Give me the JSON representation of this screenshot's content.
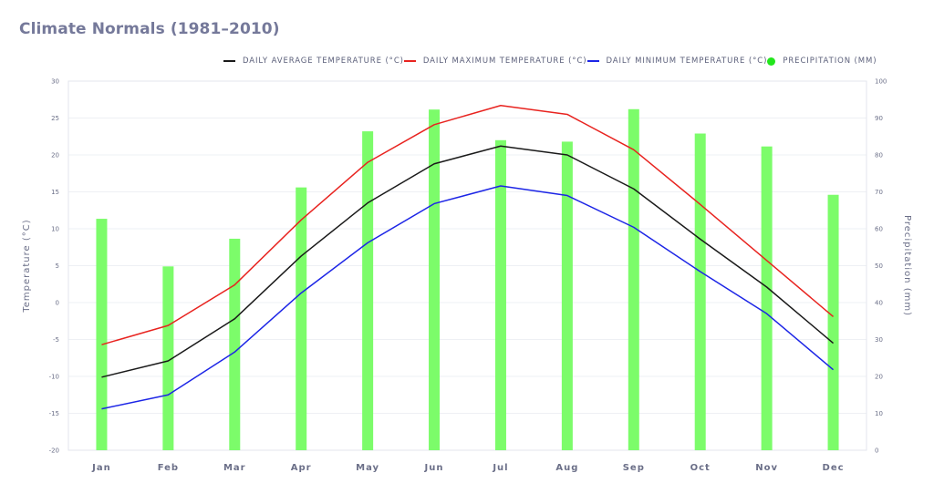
{
  "title": "Climate Normals (1981–2010)",
  "legend": [
    {
      "label": "DAILY AVERAGE TEMPERATURE (°C)",
      "color": "#1a1a1a",
      "kind": "line"
    },
    {
      "label": "DAILY MAXIMUM TEMPERATURE (°C)",
      "color": "#e8231f",
      "kind": "line"
    },
    {
      "label": "DAILY MINIMUM TEMPERATURE (°C)",
      "color": "#1c25e6",
      "kind": "line"
    },
    {
      "label": "PRECIPITATION (MM)",
      "color": "#22e61c",
      "kind": "dot"
    }
  ],
  "chart_data": {
    "type": "bar+line",
    "title": "Climate Normals (1981–2010)",
    "categories": [
      "Jan",
      "Feb",
      "Mar",
      "Apr",
      "May",
      "Jun",
      "Jul",
      "Aug",
      "Sep",
      "Oct",
      "Nov",
      "Dec"
    ],
    "series": [
      {
        "name": "Daily Average Temperature (°C)",
        "axis": "left",
        "type": "line",
        "color": "#1a1a1a",
        "values": [
          -10.1,
          -7.9,
          -2.2,
          6.3,
          13.5,
          18.8,
          21.2,
          20.0,
          15.4,
          8.6,
          2.1,
          -5.5
        ]
      },
      {
        "name": "Daily Maximum Temperature (°C)",
        "axis": "left",
        "type": "line",
        "color": "#e8231f",
        "values": [
          -5.7,
          -3.1,
          2.4,
          11.2,
          19.0,
          24.1,
          26.7,
          25.5,
          20.7,
          13.3,
          5.7,
          -1.9
        ]
      },
      {
        "name": "Daily Minimum Temperature (°C)",
        "axis": "left",
        "type": "line",
        "color": "#1c25e6",
        "values": [
          -14.4,
          -12.5,
          -6.7,
          1.3,
          8.1,
          13.4,
          15.8,
          14.5,
          10.2,
          4.2,
          -1.5,
          -9.1
        ]
      },
      {
        "name": "Precipitation (mm)",
        "axis": "right",
        "type": "bar",
        "color": "#7cfc6a",
        "values": [
          62.7,
          49.8,
          57.3,
          71.2,
          86.4,
          92.3,
          84.0,
          83.6,
          92.4,
          85.8,
          82.3,
          69.2
        ]
      }
    ],
    "y_left": {
      "label": "Temperature (°C)",
      "min": -20,
      "max": 30,
      "step": 5,
      "ticks": [
        "-20",
        "-15",
        "-10",
        "-5",
        "0",
        "5",
        "10",
        "15",
        "20",
        "25",
        "30"
      ]
    },
    "y_right": {
      "label": "Precipitation (mm)",
      "min": 0,
      "max": 100,
      "step": 10,
      "ticks": [
        "0",
        "10",
        "20",
        "30",
        "40",
        "50",
        "60",
        "70",
        "80",
        "90",
        "100"
      ]
    },
    "grid": true,
    "legend_position": "top-right"
  }
}
